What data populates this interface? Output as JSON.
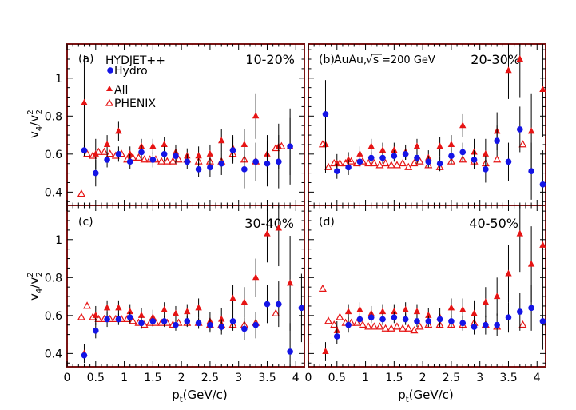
{
  "colors": {
    "hydro": "#1414e6",
    "all": "#e61414",
    "phenix": "#e61414",
    "frame": "#7a1414",
    "error_bar": "#000000"
  },
  "legend": {
    "model": "HYDJET++",
    "hydro": "Hydro",
    "all": "All",
    "phenix": "PHENIX"
  },
  "system": {
    "collision": "AuAu,",
    "energy_symbol": "√s",
    "energy_value": "=200 GeV"
  },
  "chart_data": {
    "type": "scatter",
    "layout": "2x2 grid of panels with shared axes",
    "xlabel": "p",
    "xlabel_sub": "t",
    "xlabel_unit": "(GeV/c)",
    "ylabel": "v",
    "ylabel_sub1": "4",
    "ylabel_div": "/v",
    "ylabel_sub2": "2",
    "ylabel_sup": "2",
    "xlim": [
      0,
      4.15
    ],
    "ylim": [
      0.33,
      1.18
    ],
    "xticks": [
      0,
      0.5,
      1,
      1.5,
      2,
      2.5,
      3,
      3.5,
      4
    ],
    "xtick_labels": [
      "0",
      "0.5",
      "1",
      "1.5",
      "2",
      "2.5",
      "3",
      "3.5",
      "4"
    ],
    "yticks": [
      0.4,
      0.6,
      0.8,
      1
    ],
    "ytick_labels": [
      "0.4",
      "0.6",
      "0.8",
      "1"
    ],
    "series_names": [
      "Hydro",
      "All",
      "PHENIX"
    ],
    "panels": [
      {
        "label": "(a)",
        "centrality": "10-20%",
        "series": [
          {
            "name": "Hydro",
            "marker": "filled-circle",
            "x": [
              0.3,
              0.5,
              0.7,
              0.9,
              1.1,
              1.3,
              1.5,
              1.7,
              1.9,
              2.1,
              2.3,
              2.5,
              2.7,
              2.9,
              3.1,
              3.3,
              3.5,
              3.7,
              3.9
            ],
            "y": [
              0.62,
              0.5,
              0.57,
              0.6,
              0.56,
              0.61,
              0.57,
              0.6,
              0.59,
              0.56,
              0.52,
              0.53,
              0.55,
              0.62,
              0.52,
              0.56,
              0.55,
              0.56,
              0.64
            ],
            "err": [
              0.03,
              0.07,
              0.04,
              0.04,
              0.04,
              0.04,
              0.04,
              0.04,
              0.04,
              0.04,
              0.04,
              0.05,
              0.06,
              0.07,
              0.1,
              0.1,
              0.12,
              0.14,
              0.2
            ]
          },
          {
            "name": "All",
            "marker": "filled-triangle",
            "x": [
              0.3,
              0.5,
              0.7,
              0.9,
              1.1,
              1.3,
              1.5,
              1.7,
              1.9,
              2.1,
              2.3,
              2.5,
              2.7,
              2.9,
              3.1,
              3.3,
              3.5,
              3.7,
              3.9
            ],
            "y": [
              0.87,
              0.6,
              0.65,
              0.72,
              0.6,
              0.64,
              0.64,
              0.65,
              0.61,
              0.59,
              0.59,
              0.6,
              0.67,
              0.63,
              0.65,
              0.8,
              0.6,
              0.64,
              0.64
            ],
            "err": [
              0.25,
              0.08,
              0.05,
              0.05,
              0.04,
              0.04,
              0.04,
              0.04,
              0.04,
              0.04,
              0.05,
              0.05,
              0.06,
              0.07,
              0.08,
              0.12,
              0.1,
              0.12,
              0.15
            ]
          },
          {
            "name": "PHENIX",
            "marker": "open-triangle",
            "x": [
              0.25,
              0.35,
              0.45,
              0.55,
              0.65,
              0.75,
              0.85,
              0.95,
              1.05,
              1.15,
              1.25,
              1.35,
              1.45,
              1.55,
              1.65,
              1.75,
              1.85,
              1.95,
              2.1,
              2.3,
              2.5,
              2.7,
              2.9,
              3.1,
              3.3,
              3.65,
              3.75
            ],
            "y": [
              0.39,
              0.6,
              0.59,
              0.61,
              0.61,
              0.6,
              0.59,
              0.6,
              0.57,
              0.58,
              0.58,
              0.57,
              0.57,
              0.57,
              0.56,
              0.56,
              0.56,
              0.57,
              0.57,
              0.56,
              0.56,
              0.56,
              0.6,
              0.57,
              0.56,
              0.63,
              0.64
            ]
          }
        ]
      },
      {
        "label": "(b)",
        "centrality": "20-30%",
        "series": [
          {
            "name": "Hydro",
            "marker": "filled-circle",
            "x": [
              0.3,
              0.5,
              0.7,
              0.9,
              1.1,
              1.3,
              1.5,
              1.7,
              1.9,
              2.1,
              2.3,
              2.5,
              2.7,
              2.9,
              3.1,
              3.3,
              3.5,
              3.7,
              3.9,
              4.1
            ],
            "y": [
              0.81,
              0.51,
              0.53,
              0.56,
              0.58,
              0.58,
              0.59,
              0.6,
              0.58,
              0.56,
              0.55,
              0.59,
              0.61,
              0.57,
              0.52,
              0.67,
              0.56,
              0.73,
              0.51,
              0.44
            ],
            "err": [
              0.18,
              0.04,
              0.04,
              0.03,
              0.03,
              0.03,
              0.03,
              0.03,
              0.03,
              0.03,
              0.04,
              0.04,
              0.05,
              0.05,
              0.07,
              0.08,
              0.1,
              0.12,
              0.15,
              0.18
            ]
          },
          {
            "name": "All",
            "marker": "filled-triangle",
            "x": [
              0.3,
              0.5,
              0.7,
              0.9,
              1.1,
              1.3,
              1.5,
              1.7,
              1.9,
              2.1,
              2.3,
              2.5,
              2.7,
              2.9,
              3.1,
              3.3,
              3.5,
              3.7,
              3.9,
              4.1
            ],
            "y": [
              0.65,
              0.55,
              0.57,
              0.6,
              0.64,
              0.62,
              0.62,
              0.61,
              0.64,
              0.58,
              0.64,
              0.65,
              0.75,
              0.61,
              0.6,
              0.72,
              1.04,
              1.1,
              0.72,
              0.94
            ],
            "err": [
              0.15,
              0.05,
              0.04,
              0.04,
              0.04,
              0.04,
              0.04,
              0.04,
              0.04,
              0.04,
              0.05,
              0.05,
              0.06,
              0.07,
              0.08,
              0.1,
              0.15,
              0.2,
              0.2,
              0.25
            ]
          },
          {
            "name": "PHENIX",
            "marker": "open-triangle",
            "x": [
              0.25,
              0.35,
              0.45,
              0.55,
              0.65,
              0.75,
              0.85,
              0.95,
              1.05,
              1.15,
              1.25,
              1.35,
              1.45,
              1.55,
              1.65,
              1.75,
              1.85,
              1.95,
              2.1,
              2.3,
              2.5,
              2.7,
              2.9,
              3.1,
              3.3,
              3.75
            ],
            "y": [
              0.65,
              0.53,
              0.55,
              0.55,
              0.55,
              0.56,
              0.55,
              0.56,
              0.55,
              0.55,
              0.54,
              0.55,
              0.54,
              0.54,
              0.55,
              0.53,
              0.55,
              0.56,
              0.54,
              0.53,
              0.56,
              0.57,
              0.56,
              0.55,
              0.57,
              0.65
            ]
          }
        ]
      },
      {
        "label": "(c)",
        "centrality": "30-40%",
        "series": [
          {
            "name": "Hydro",
            "marker": "filled-circle",
            "x": [
              0.3,
              0.5,
              0.7,
              0.9,
              1.1,
              1.3,
              1.5,
              1.7,
              1.9,
              2.1,
              2.3,
              2.5,
              2.7,
              2.9,
              3.1,
              3.3,
              3.5,
              3.7,
              3.9,
              4.1
            ],
            "y": [
              0.39,
              0.52,
              0.58,
              0.58,
              0.59,
              0.56,
              0.57,
              0.57,
              0.55,
              0.57,
              0.56,
              0.55,
              0.54,
              0.57,
              0.53,
              0.55,
              0.66,
              0.66,
              0.41,
              0.64
            ],
            "err": [
              0.02,
              0.04,
              0.04,
              0.03,
              0.03,
              0.03,
              0.03,
              0.03,
              0.03,
              0.03,
              0.03,
              0.04,
              0.04,
              0.05,
              0.06,
              0.07,
              0.1,
              0.12,
              0.15,
              0.18
            ]
          },
          {
            "name": "All",
            "marker": "filled-triangle",
            "x": [
              0.3,
              0.5,
              0.7,
              0.9,
              1.1,
              1.3,
              1.5,
              1.7,
              1.9,
              2.1,
              2.3,
              2.5,
              2.7,
              2.9,
              3.1,
              3.3,
              3.5,
              3.7,
              3.9
            ],
            "y": [
              0.4,
              0.6,
              0.64,
              0.64,
              0.62,
              0.6,
              0.59,
              0.63,
              0.61,
              0.62,
              0.64,
              0.57,
              0.58,
              0.69,
              0.67,
              0.8,
              1.03,
              1.06,
              0.77
            ],
            "err": [
              0.05,
              0.05,
              0.04,
              0.04,
              0.04,
              0.04,
              0.04,
              0.04,
              0.04,
              0.04,
              0.05,
              0.05,
              0.06,
              0.07,
              0.08,
              0.1,
              0.15,
              0.2,
              0.25
            ]
          },
          {
            "name": "PHENIX",
            "marker": "open-triangle",
            "x": [
              0.25,
              0.35,
              0.45,
              0.55,
              0.65,
              0.75,
              0.85,
              0.95,
              1.05,
              1.15,
              1.25,
              1.35,
              1.45,
              1.55,
              1.65,
              1.75,
              1.85,
              1.95,
              2.1,
              2.3,
              2.5,
              2.7,
              2.9,
              3.1,
              3.3,
              3.65
            ],
            "y": [
              0.59,
              0.65,
              0.59,
              0.58,
              0.58,
              0.58,
              0.58,
              0.58,
              0.58,
              0.57,
              0.56,
              0.55,
              0.56,
              0.56,
              0.56,
              0.56,
              0.55,
              0.56,
              0.56,
              0.56,
              0.55,
              0.55,
              0.55,
              0.55,
              0.56,
              0.61
            ]
          }
        ]
      },
      {
        "label": "(d)",
        "centrality": "40-50%",
        "series": [
          {
            "name": "Hydro",
            "marker": "filled-circle",
            "x": [
              0.5,
              0.7,
              0.9,
              1.1,
              1.3,
              1.5,
              1.7,
              1.9,
              2.1,
              2.3,
              2.5,
              2.7,
              2.9,
              3.1,
              3.3,
              3.5,
              3.7,
              3.9,
              4.1
            ],
            "y": [
              0.49,
              0.55,
              0.58,
              0.59,
              0.58,
              0.59,
              0.58,
              0.57,
              0.57,
              0.58,
              0.57,
              0.56,
              0.54,
              0.55,
              0.55,
              0.59,
              0.62,
              0.64,
              0.57
            ],
            "err": [
              0.04,
              0.04,
              0.03,
              0.03,
              0.03,
              0.03,
              0.03,
              0.03,
              0.03,
              0.03,
              0.03,
              0.04,
              0.04,
              0.05,
              0.06,
              0.08,
              0.1,
              0.12,
              0.15
            ]
          },
          {
            "name": "All",
            "marker": "filled-triangle",
            "x": [
              0.3,
              0.5,
              0.7,
              0.9,
              1.1,
              1.3,
              1.5,
              1.7,
              1.9,
              2.1,
              2.3,
              2.5,
              2.7,
              2.9,
              3.1,
              3.3,
              3.5,
              3.7,
              3.9,
              4.1
            ],
            "y": [
              0.41,
              0.52,
              0.62,
              0.63,
              0.61,
              0.62,
              0.62,
              0.63,
              0.62,
              0.6,
              0.59,
              0.64,
              0.63,
              0.61,
              0.67,
              0.7,
              0.82,
              1.03,
              0.87,
              0.97
            ],
            "err": [
              0.05,
              0.05,
              0.04,
              0.04,
              0.04,
              0.04,
              0.04,
              0.04,
              0.04,
              0.04,
              0.05,
              0.05,
              0.06,
              0.07,
              0.08,
              0.1,
              0.15,
              0.2,
              0.2,
              0.25
            ]
          },
          {
            "name": "PHENIX",
            "marker": "open-triangle",
            "x": [
              0.25,
              0.35,
              0.45,
              0.55,
              0.65,
              0.75,
              0.85,
              0.95,
              1.05,
              1.15,
              1.25,
              1.35,
              1.45,
              1.55,
              1.65,
              1.75,
              1.85,
              1.95,
              2.1,
              2.3,
              2.5,
              2.7,
              2.9,
              3.1,
              3.3,
              3.75
            ],
            "y": [
              0.74,
              0.57,
              0.55,
              0.59,
              0.56,
              0.56,
              0.56,
              0.55,
              0.54,
              0.54,
              0.54,
              0.53,
              0.53,
              0.54,
              0.53,
              0.53,
              0.52,
              0.54,
              0.55,
              0.55,
              0.55,
              0.55,
              0.56,
              0.55,
              0.54,
              0.55
            ]
          }
        ]
      }
    ]
  }
}
